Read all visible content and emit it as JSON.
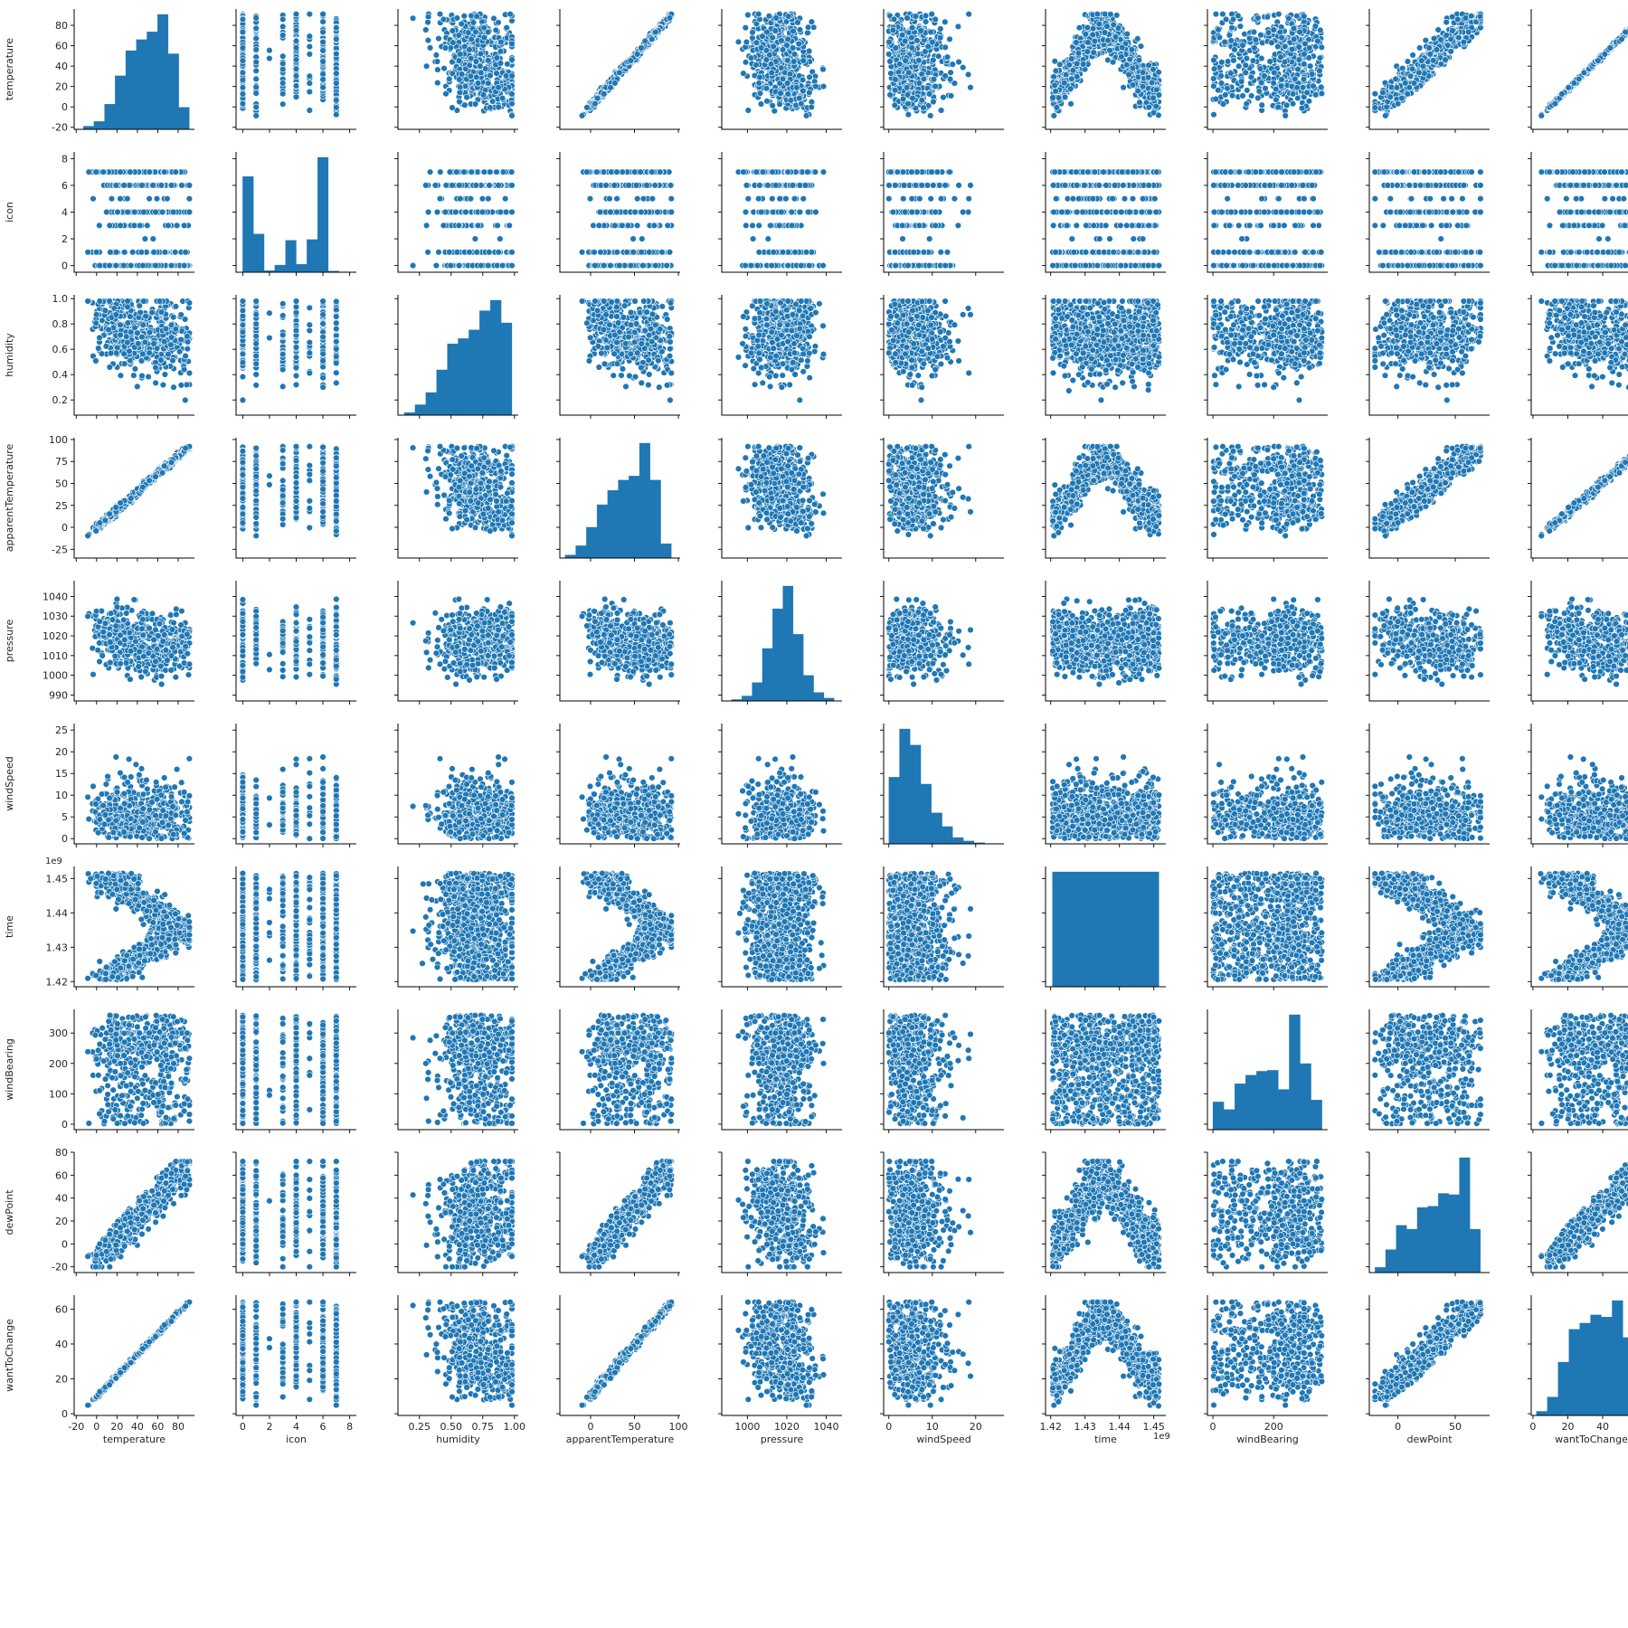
{
  "chart_data": {
    "type": "scatter",
    "kind": "pairplot",
    "color": "#1f77b4",
    "point_edge_color": "#ffffff",
    "grid": false,
    "variables": [
      {
        "name": "temperature",
        "min": -22,
        "max": 96,
        "ticks": [
          -20,
          0,
          20,
          40,
          60,
          80
        ],
        "tick_labels": [
          "-20",
          "0",
          "20",
          "40",
          "60",
          "80"
        ],
        "offset_text": "",
        "hist_bins": [
          -13,
          -2.6,
          7.8,
          18.2,
          28.6,
          39,
          49.4,
          59.8,
          70.2,
          80.6,
          91
        ],
        "hist_counts": [
          10,
          25,
          80,
          170,
          250,
          285,
          310,
          365,
          240,
          70
        ]
      },
      {
        "name": "icon",
        "min": -0.5,
        "max": 8.5,
        "ticks": [
          0,
          2,
          4,
          6,
          8
        ],
        "tick_labels": [
          "0",
          "2",
          "4",
          "6",
          "8"
        ],
        "offset_text": "",
        "levels": [
          0,
          1,
          2,
          3,
          4,
          5,
          6,
          7,
          8
        ],
        "hist_bins": [
          0,
          0.8,
          1.6,
          2.4,
          3.2,
          4,
          4.8,
          5.6,
          6.4,
          7.2,
          8
        ],
        "hist_counts": [
          1200,
          480,
          20,
          90,
          400,
          100,
          410,
          1440,
          15,
          5
        ]
      },
      {
        "name": "humidity",
        "min": 0.08,
        "max": 1.03,
        "ticks": [
          0.25,
          0.5,
          0.75,
          1.0
        ],
        "tick_labels": [
          "0.25",
          "0.50",
          "0.75",
          "1.00"
        ],
        "x_ticks": [
          0.25,
          0.5,
          0.75,
          1.0
        ],
        "x_tick_labels": [
          "0.25",
          "0.50",
          "0.75",
          "1.00"
        ],
        "y_ticks": [
          0.2,
          0.4,
          0.6,
          0.8,
          1.0
        ],
        "y_tick_labels": [
          "0.2",
          "0.4",
          "0.6",
          "0.8",
          "1.0"
        ],
        "offset_text": "",
        "hist_bins": [
          0.13,
          0.215,
          0.3,
          0.385,
          0.47,
          0.555,
          0.64,
          0.725,
          0.81,
          0.895,
          0.98
        ],
        "hist_counts": [
          15,
          60,
          130,
          260,
          410,
          440,
          490,
          600,
          660,
          530
        ]
      },
      {
        "name": "apparentTemperature",
        "min": -35,
        "max": 102,
        "ticks": [
          -25,
          0,
          25,
          50,
          75,
          100
        ],
        "tick_labels": [
          "-25",
          "0",
          "25",
          "50",
          "75",
          "100"
        ],
        "x_ticks": [
          0,
          50,
          100
        ],
        "x_tick_labels": [
          "0",
          "50",
          "100"
        ],
        "y_ticks": [
          -25,
          0,
          25,
          50,
          75,
          100
        ],
        "y_tick_labels": [
          "-25",
          "0",
          "25",
          "50",
          "75",
          "100"
        ],
        "offset_text": "",
        "hist_bins": [
          -29,
          -16.9,
          -4.8,
          7.3,
          19.4,
          31.5,
          43.6,
          55.7,
          67.8,
          79.9,
          92
        ],
        "hist_counts": [
          15,
          60,
          150,
          260,
          330,
          380,
          400,
          560,
          380,
          70
        ]
      },
      {
        "name": "pressure",
        "min": 987,
        "max": 1048,
        "ticks": [
          990,
          1000,
          1010,
          1020,
          1030,
          1040
        ],
        "tick_labels": [
          "990",
          "1000",
          "1010",
          "1020",
          "1030",
          "1040"
        ],
        "x_ticks": [
          1000,
          1020,
          1040
        ],
        "x_tick_labels": [
          "1000",
          "1020",
          "1040"
        ],
        "y_ticks": [
          990,
          1000,
          1010,
          1020,
          1030,
          1040
        ],
        "y_tick_labels": [
          "990",
          "1000",
          "1010",
          "1020",
          "1030",
          "1040"
        ],
        "offset_text": "",
        "hist_bins": [
          992,
          997.2,
          1002.4,
          1007.6,
          1012.8,
          1018,
          1023.2,
          1028.4,
          1033.6,
          1038.8,
          1044
        ],
        "hist_counts": [
          10,
          35,
          130,
          370,
          650,
          810,
          470,
          180,
          60,
          20
        ]
      },
      {
        "name": "windSpeed",
        "min": -1.2,
        "max": 26.5,
        "ticks": [
          0,
          5,
          10,
          15,
          20,
          25
        ],
        "tick_labels": [
          "0",
          "5",
          "10",
          "15",
          "20",
          "25"
        ],
        "x_ticks": [
          0,
          10,
          20
        ],
        "x_tick_labels": [
          "0",
          "10",
          "20"
        ],
        "y_ticks": [
          0,
          5,
          10,
          15,
          20,
          25
        ],
        "y_tick_labels": [
          "0",
          "5",
          "10",
          "15",
          "20",
          "25"
        ],
        "offset_text": "",
        "hist_bins": [
          0,
          2.45,
          4.9,
          7.35,
          9.8,
          12.25,
          14.7,
          17.15,
          19.6,
          22.05,
          24.5
        ],
        "hist_counts": [
          580,
          1000,
          860,
          520,
          270,
          150,
          55,
          25,
          10,
          3
        ]
      },
      {
        "name": "time",
        "min": 1418500000.0,
        "max": 1453500000.0,
        "ticks": [
          1420000000.0,
          1430000000.0,
          1440000000.0,
          1450000000.0
        ],
        "tick_labels": [
          "1.42",
          "1.43",
          "1.44",
          "1.45"
        ],
        "offset_text": "1e9",
        "hist_bins": [
          1420500000.0,
          1423600000.0,
          1426700000.0,
          1429800000.0,
          1432900000.0,
          1436000000.0,
          1439100000.0,
          1442200000.0,
          1445300000.0,
          1448400000.0,
          1451500000.0
        ],
        "hist_counts": [
          365,
          365,
          365,
          365,
          365,
          365,
          365,
          365,
          365,
          365
        ]
      },
      {
        "name": "windBearing",
        "min": -18,
        "max": 378,
        "ticks": [
          0,
          100,
          200,
          300
        ],
        "tick_labels": [
          "0",
          "100",
          "200",
          "300"
        ],
        "x_ticks": [
          0,
          200
        ],
        "x_tick_labels": [
          "0",
          "200"
        ],
        "y_ticks": [
          0,
          100,
          200,
          300
        ],
        "y_tick_labels": [
          "0",
          "100",
          "200",
          "300"
        ],
        "offset_text": "",
        "hist_bins": [
          0,
          35.9,
          71.8,
          107.7,
          143.6,
          179.5,
          215.4,
          251.3,
          287.2,
          323.1,
          359
        ],
        "hist_counts": [
          290,
          210,
          480,
          570,
          610,
          620,
          420,
          1200,
          690,
          310
        ]
      },
      {
        "name": "dewPoint",
        "min": -25,
        "max": 80,
        "ticks": [
          -20,
          0,
          20,
          40,
          60,
          80
        ],
        "tick_labels": [
          "-20",
          "0",
          "20",
          "40",
          "60",
          "80"
        ],
        "x_ticks": [
          0,
          50
        ],
        "x_tick_labels": [
          "0",
          "50"
        ],
        "y_ticks": [
          -20,
          0,
          20,
          40,
          60,
          80
        ],
        "y_tick_labels": [
          "-20",
          "0",
          "20",
          "40",
          "60",
          "80"
        ],
        "offset_text": "",
        "hist_bins": [
          -20,
          -10.8,
          -1.6,
          7.6,
          16.8,
          26,
          35.2,
          44.4,
          53.6,
          62.8,
          72
        ],
        "hist_counts": [
          40,
          180,
          370,
          340,
          510,
          520,
          620,
          610,
          900,
          340
        ]
      },
      {
        "name": "wantToChange",
        "min": -1,
        "max": 68,
        "ticks": [
          0,
          20,
          40,
          60
        ],
        "tick_labels": [
          "0",
          "20",
          "40",
          "60"
        ],
        "offset_text": "",
        "hist_bins": [
          2,
          8.2,
          14.4,
          20.6,
          26.8,
          33,
          39.2,
          45.4,
          51.6,
          57.8,
          64
        ],
        "hist_counts": [
          20,
          90,
          260,
          420,
          450,
          490,
          480,
          560,
          380,
          90
        ]
      }
    ]
  }
}
